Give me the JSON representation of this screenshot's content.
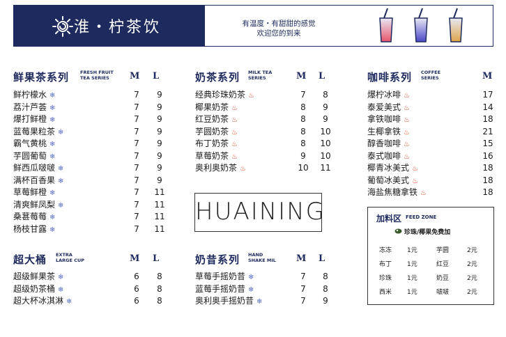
{
  "header": {
    "brand": "淮・柠茶饮",
    "slogan_line1": "有温度・有甜甜的感觉",
    "slogan_line2": "欢迎您的到来"
  },
  "size_labels": {
    "m": "M",
    "l": "L"
  },
  "fruit_tea": {
    "title": "鲜果茶系列",
    "en1": "FRESH FRUIT",
    "en2": "TEA SERIES",
    "items": [
      {
        "name": "鲜柠檬水",
        "icon": "ice",
        "m": "7",
        "l": "9"
      },
      {
        "name": "荔汁芦荟",
        "icon": "ice",
        "m": "7",
        "l": "9"
      },
      {
        "name": "爆打鲜橙",
        "icon": "ice",
        "m": "7",
        "l": "9"
      },
      {
        "name": "蓝莓果粒茶",
        "icon": "ice",
        "m": "7",
        "l": "9"
      },
      {
        "name": "霸气黄桃",
        "icon": "ice",
        "m": "7",
        "l": "9"
      },
      {
        "name": "芋圆葡萄",
        "icon": "ice",
        "m": "7",
        "l": "9"
      },
      {
        "name": "鲜西瓜啵啵",
        "icon": "ice",
        "m": "7",
        "l": "9"
      },
      {
        "name": "满杯百香果",
        "icon": "ice",
        "m": "7",
        "l": "9"
      },
      {
        "name": "草莓鲜橙",
        "icon": "ice",
        "m": "7",
        "l": "11"
      },
      {
        "name": "清爽鲜凤梨",
        "icon": "ice",
        "m": "7",
        "l": "11"
      },
      {
        "name": "桑葚莓莓",
        "icon": "ice",
        "m": "7",
        "l": "11"
      },
      {
        "name": "杨枝甘露",
        "icon": "ice",
        "m": "7",
        "l": "11"
      }
    ]
  },
  "milk_tea": {
    "title": "奶茶系列",
    "en1": "MILK TEA",
    "en2": "SERIES",
    "items": [
      {
        "name": "经典珍珠奶茶",
        "icon": "hot",
        "m": "7",
        "l": "8"
      },
      {
        "name": "椰果奶茶",
        "icon": "hot",
        "m": "8",
        "l": "9"
      },
      {
        "name": "红豆奶茶",
        "icon": "hot",
        "m": "8",
        "l": "9"
      },
      {
        "name": "芋圆奶茶",
        "icon": "hot",
        "m": "8",
        "l": "10"
      },
      {
        "name": "布丁奶茶",
        "icon": "hot",
        "m": "8",
        "l": "10"
      },
      {
        "name": "草莓奶茶",
        "icon": "hot",
        "m": "9",
        "l": "10"
      },
      {
        "name": "奥利奥奶茶",
        "icon": "hot",
        "m": "10",
        "l": "11"
      }
    ]
  },
  "coffee": {
    "title": "咖啡系列",
    "en1": "COFFEE",
    "en2": "SERIES",
    "items": [
      {
        "name": "爆柠冰啡",
        "icon": "hot",
        "price": "17"
      },
      {
        "name": "泰爱美式",
        "icon": "hot",
        "price": "14"
      },
      {
        "name": "拿铁咖啡",
        "icon": "hot",
        "price": "18"
      },
      {
        "name": "生椰拿铁",
        "icon": "hot",
        "price": "21"
      },
      {
        "name": "醇香咖啡",
        "icon": "hot",
        "price": "15"
      },
      {
        "name": "泰式咖啡",
        "icon": "hot",
        "price": "16"
      },
      {
        "name": "椰青冰美式",
        "icon": "hot",
        "price": "18"
      },
      {
        "name": "葡萄冰美式",
        "icon": "hot",
        "price": "18"
      },
      {
        "name": "海盐焦糖拿铁",
        "icon": "hot",
        "price": "18"
      }
    ]
  },
  "large_cup": {
    "title": "超大桶",
    "en1": "EXTRA",
    "en2": "LARGE CUP",
    "items": [
      {
        "name": "超级鲜果茶",
        "icon": "ice",
        "m": "6",
        "l": "8"
      },
      {
        "name": "超级奶茶桶",
        "icon": "ice",
        "m": "6",
        "l": "8"
      },
      {
        "name": "超大杯冰淇淋",
        "icon": "ice",
        "m": "6",
        "l": "8"
      }
    ]
  },
  "shake": {
    "title": "奶昔系列",
    "en1": "HAND",
    "en2": "SHAKE MIL",
    "items": [
      {
        "name": "草莓手摇奶昔",
        "icon": "ice",
        "m": "7",
        "l": "8"
      },
      {
        "name": "蓝莓手摇奶昔",
        "icon": "ice",
        "m": "7",
        "l": "8"
      },
      {
        "name": "奥利奥手摇奶昔",
        "icon": "ice",
        "m": "7",
        "l": "9"
      }
    ]
  },
  "huaining_sign": "HUAINING",
  "feed": {
    "title": "加料区",
    "en": "FEED ZONE",
    "free": "珍珠/椰果免费加",
    "rows": [
      {
        "a": "冻冻",
        "ap": "1元",
        "b": "芋圆",
        "bp": "2元"
      },
      {
        "a": "布丁",
        "ap": "1元",
        "b": "红豆",
        "bp": "2元"
      },
      {
        "a": "珍珠",
        "ap": "1元",
        "b": "奶豆",
        "bp": "2元"
      },
      {
        "a": "西米",
        "ap": "1元",
        "b": "啵啵",
        "bp": "2元"
      }
    ]
  },
  "icons": {
    "ice": "snowflake-icon",
    "hot": "flame-icon"
  },
  "colors": {
    "navy": "#1e2a5e",
    "ice": "#5a6cc0",
    "hot": "#e03a1a"
  }
}
